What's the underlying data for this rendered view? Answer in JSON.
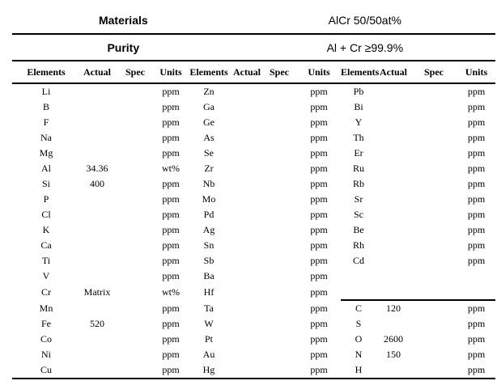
{
  "header": {
    "materials_label": "Materials",
    "materials_value": "AlCr 50/50at%",
    "purity_label": "Purity",
    "purity_value": "Al + Cr ≥99.9%"
  },
  "table": {
    "column_headers": [
      "Elements",
      "Actual",
      "Spec",
      "Units",
      "Elements",
      "Actual",
      "Spec",
      "Units",
      "Elements",
      "Actual",
      "Spec",
      "Units"
    ],
    "separator_below_row_index": 13,
    "rows": [
      [
        [
          "Li",
          "",
          "",
          "ppm"
        ],
        [
          "Zn",
          "",
          "",
          "ppm"
        ],
        [
          "Pb",
          "",
          "",
          "ppm"
        ]
      ],
      [
        [
          "B",
          "",
          "",
          "ppm"
        ],
        [
          "Ga",
          "",
          "",
          "ppm"
        ],
        [
          "Bi",
          "",
          "",
          "ppm"
        ]
      ],
      [
        [
          "F",
          "",
          "",
          "ppm"
        ],
        [
          "Ge",
          "",
          "",
          "ppm"
        ],
        [
          "Y",
          "",
          "",
          "ppm"
        ]
      ],
      [
        [
          "Na",
          "",
          "",
          "ppm"
        ],
        [
          "As",
          "",
          "",
          "ppm"
        ],
        [
          "Th",
          "",
          "",
          "ppm"
        ]
      ],
      [
        [
          "Mg",
          "",
          "",
          "ppm"
        ],
        [
          "Se",
          "",
          "",
          "ppm"
        ],
        [
          "Er",
          "",
          "",
          "ppm"
        ]
      ],
      [
        [
          "Al",
          "34.36",
          "",
          "wt%"
        ],
        [
          "Zr",
          "",
          "",
          "ppm"
        ],
        [
          "Ru",
          "",
          "",
          "ppm"
        ]
      ],
      [
        [
          "Si",
          "400",
          "",
          "ppm"
        ],
        [
          "Nb",
          "",
          "",
          "ppm"
        ],
        [
          "Rb",
          "",
          "",
          "ppm"
        ]
      ],
      [
        [
          "P",
          "",
          "",
          "ppm"
        ],
        [
          "Mo",
          "",
          "",
          "ppm"
        ],
        [
          "Sr",
          "",
          "",
          "ppm"
        ]
      ],
      [
        [
          "Cl",
          "",
          "",
          "ppm"
        ],
        [
          "Pd",
          "",
          "",
          "ppm"
        ],
        [
          "Sc",
          "",
          "",
          "ppm"
        ]
      ],
      [
        [
          "K",
          "",
          "",
          "ppm"
        ],
        [
          "Ag",
          "",
          "",
          "ppm"
        ],
        [
          "Be",
          "",
          "",
          "ppm"
        ]
      ],
      [
        [
          "Ca",
          "",
          "",
          "ppm"
        ],
        [
          "Sn",
          "",
          "",
          "ppm"
        ],
        [
          "Rh",
          "",
          "",
          "ppm"
        ]
      ],
      [
        [
          "Ti",
          "",
          "",
          "ppm"
        ],
        [
          "Sb",
          "",
          "",
          "ppm"
        ],
        [
          "Cd",
          "",
          "",
          "ppm"
        ]
      ],
      [
        [
          "V",
          "",
          "",
          "ppm"
        ],
        [
          "Ba",
          "",
          "",
          "ppm"
        ],
        [
          "",
          "",
          "",
          ""
        ]
      ],
      [
        [
          "Cr",
          "Matrix",
          "",
          "wt%"
        ],
        [
          "Hf",
          "",
          "",
          "ppm"
        ],
        [
          "",
          "",
          "",
          ""
        ]
      ],
      [
        [
          "Mn",
          "",
          "",
          "ppm"
        ],
        [
          "Ta",
          "",
          "",
          "ppm"
        ],
        [
          "C",
          "120",
          "",
          "ppm"
        ]
      ],
      [
        [
          "Fe",
          "520",
          "",
          "ppm"
        ],
        [
          "W",
          "",
          "",
          "ppm"
        ],
        [
          "S",
          "",
          "",
          "ppm"
        ]
      ],
      [
        [
          "Co",
          "",
          "",
          "ppm"
        ],
        [
          "Pt",
          "",
          "",
          "ppm"
        ],
        [
          "O",
          "2600",
          "",
          "ppm"
        ]
      ],
      [
        [
          "Ni",
          "",
          "",
          "ppm"
        ],
        [
          "Au",
          "",
          "",
          "ppm"
        ],
        [
          "N",
          "150",
          "",
          "ppm"
        ]
      ],
      [
        [
          "Cu",
          "",
          "",
          "ppm"
        ],
        [
          "Hg",
          "",
          "",
          "ppm"
        ],
        [
          "H",
          "",
          "",
          "ppm"
        ]
      ]
    ]
  },
  "colors": {
    "text": "#000000",
    "background": "#ffffff",
    "rule": "#000000"
  }
}
